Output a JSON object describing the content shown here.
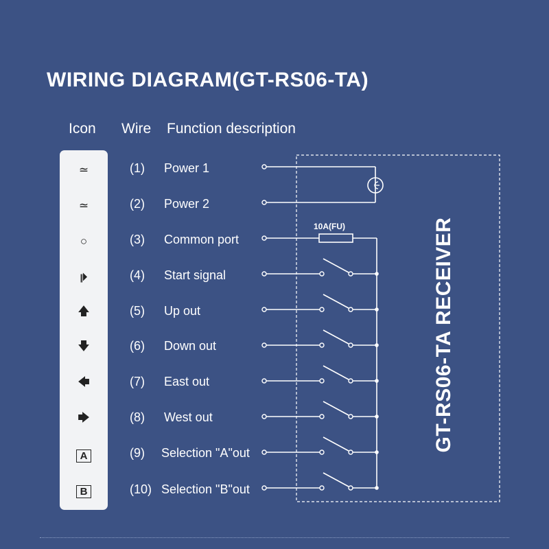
{
  "title": "WIRING DIAGRAM(GT-RS06-TA)",
  "headers": {
    "icon": "Icon",
    "wire": "Wire",
    "function": "Function description"
  },
  "rows": [
    {
      "icon": "power-icon",
      "glyph": "≃",
      "wire": "(1)",
      "label": "Power 1"
    },
    {
      "icon": "power-icon",
      "glyph": "≃",
      "wire": "(2)",
      "label": "Power 2"
    },
    {
      "icon": "circle-icon",
      "glyph": "○",
      "wire": "(3)",
      "label": "Common port"
    },
    {
      "icon": "start-icon",
      "glyph": "⏵",
      "wire": "(4)",
      "label": "Start signal"
    },
    {
      "icon": "up-arrow-icon",
      "glyph": "🡅",
      "wire": "(5)",
      "label": "Up out"
    },
    {
      "icon": "down-arrow-icon",
      "glyph": "🡇",
      "wire": "(6)",
      "label": "Down out"
    },
    {
      "icon": "left-arrow-icon",
      "glyph": "🡄",
      "wire": "(7)",
      "label": "East out"
    },
    {
      "icon": "right-arrow-icon",
      "glyph": "🡆",
      "wire": "(8)",
      "label": "West out"
    },
    {
      "icon": "a-box-icon",
      "glyph": "A",
      "wire": "(9)",
      "label": "Selection \"A\"out"
    },
    {
      "icon": "b-box-icon",
      "glyph": "B",
      "wire": "(10)",
      "label": "Selection \"B\"out"
    }
  ],
  "fuse_label": "10A(FU)",
  "receiver_label": "GT-RS06-TA RECEIVER",
  "colors": {
    "background": "#3c5284",
    "line": "#ffffff",
    "panel": "#f2f3f5"
  }
}
